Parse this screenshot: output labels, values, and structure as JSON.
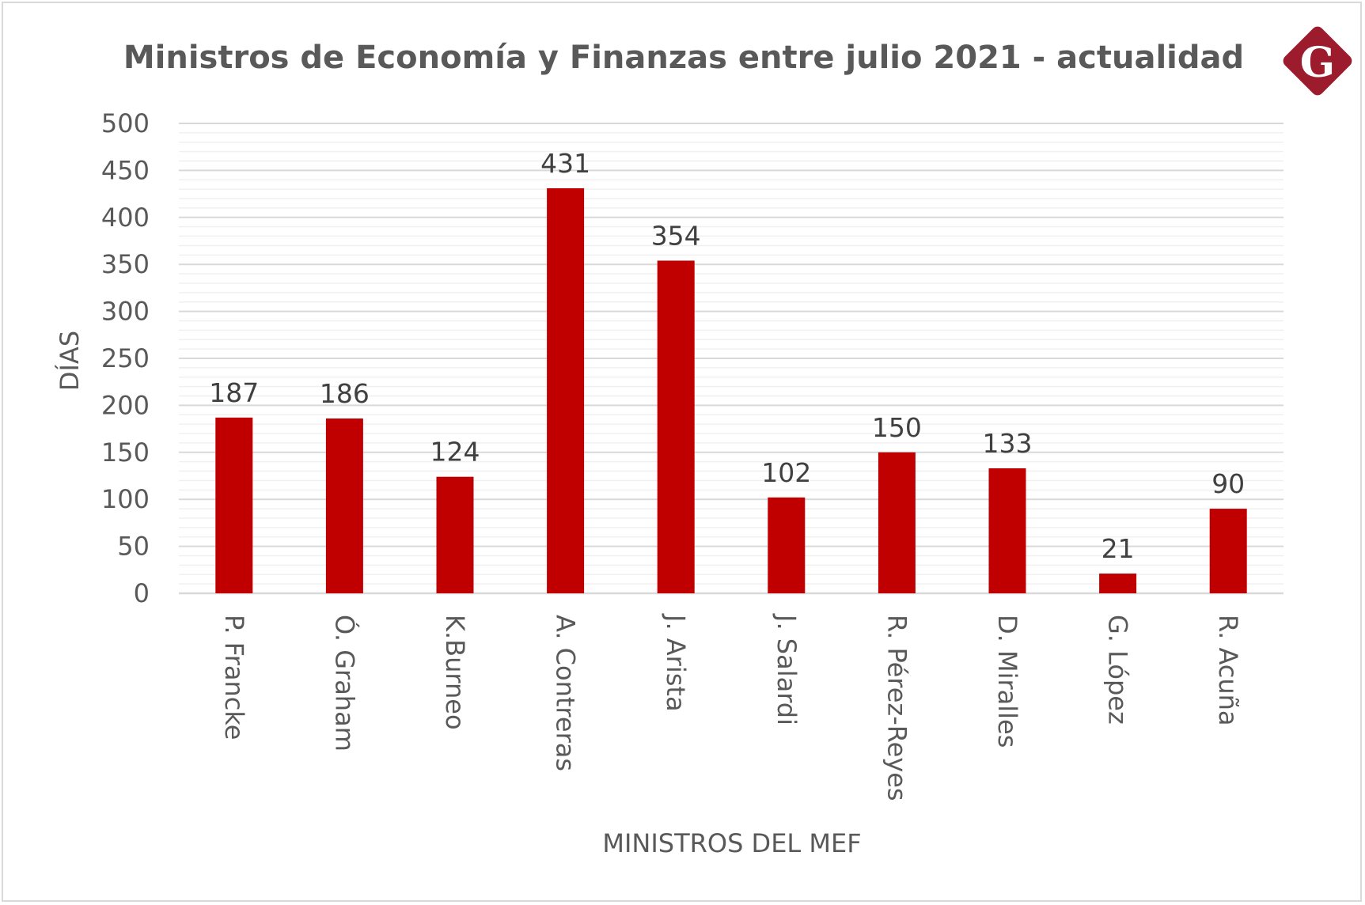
{
  "chart_data": {
    "type": "bar",
    "title": "Ministros de Economía y Finanzas entre julio 2021 - actualidad",
    "xlabel": "MINISTROS DEL MEF",
    "ylabel": "DÍAS",
    "categories": [
      "P. Francke",
      "Ó. Graham",
      "K.Burneo",
      "A. Contreras",
      "J. Arista",
      "J. Salardi",
      "R. Pérez-Reyes",
      "D. Miralles",
      "G. López",
      "R. Acuña"
    ],
    "values": [
      187,
      186,
      124,
      431,
      354,
      102,
      150,
      133,
      21,
      90
    ],
    "ylim": [
      0,
      500
    ],
    "yticks": [
      0,
      50,
      100,
      150,
      200,
      250,
      300,
      350,
      400,
      450,
      500
    ],
    "data_labels": true,
    "grid": true,
    "legend": "none",
    "bar_color": "#c00000"
  },
  "logo": {
    "letter": "G",
    "color": "#9c1b2d"
  }
}
